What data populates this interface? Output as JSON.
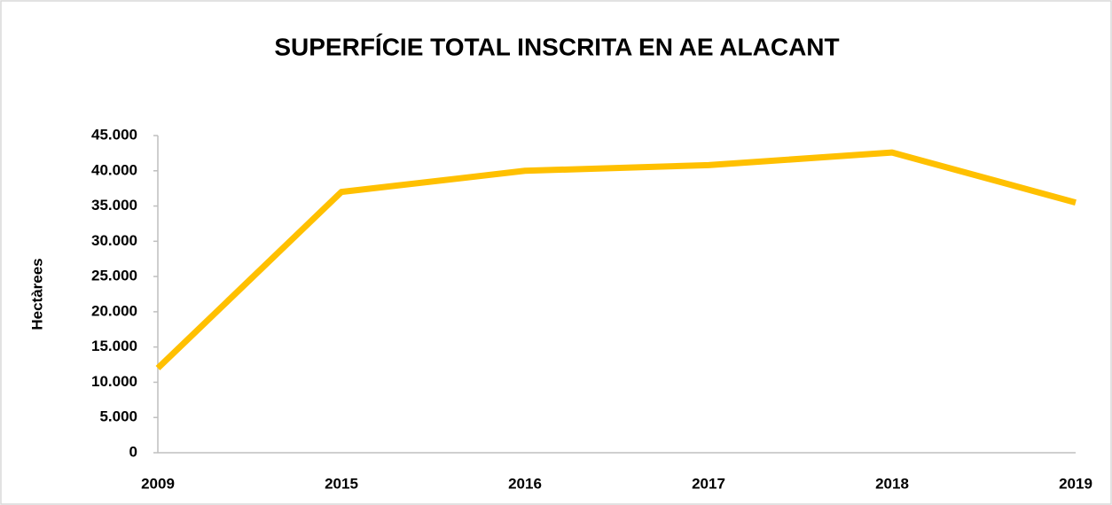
{
  "chart_data": {
    "type": "line",
    "title": "SUPERFÍCIE TOTAL INSCRITA EN  AE ALACANT",
    "y_label": "Hectàrees",
    "categories": [
      "2009",
      "2015",
      "2016",
      "2017",
      "2018",
      "2019"
    ],
    "series": [
      {
        "name": "Hectàrees",
        "color": "#ffc000",
        "values": [
          12000,
          37000,
          40000,
          40800,
          42600,
          35500
        ]
      }
    ],
    "ylim": [
      0,
      45000
    ],
    "yticks": [
      0,
      {
        "value": 5000,
        "label": "5.000"
      },
      {
        "value": 10000,
        "label": "10.000"
      },
      {
        "value": 15000,
        "label": "15.000"
      },
      {
        "value": 20000,
        "label": "20.000"
      },
      {
        "value": 25000,
        "label": "25.000"
      },
      {
        "value": 30000,
        "label": "30.000"
      },
      {
        "value": 35000,
        "label": "35.000"
      },
      {
        "value": 40000,
        "label": "40.000"
      },
      {
        "value": 45000,
        "label": "45.000"
      }
    ],
    "grid": false,
    "legend": false
  }
}
